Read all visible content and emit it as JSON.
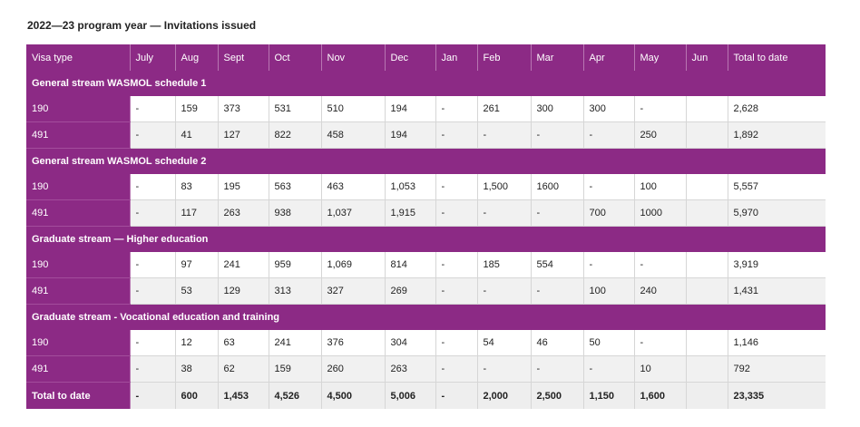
{
  "title": "2022—23 program year — Invitations issued",
  "columns": [
    "Visa type",
    "July",
    "Aug",
    "Sept",
    "Oct",
    "Nov",
    "Dec",
    "Jan",
    "Feb",
    "Mar",
    "Apr",
    "May",
    "Jun",
    "Total to date"
  ],
  "sections": [
    {
      "label": "General stream WASMOL schedule 1",
      "rows": [
        [
          "190",
          "-",
          "159",
          "373",
          "531",
          "510",
          "194",
          "-",
          "261",
          "300",
          "300",
          "-",
          "",
          "2,628"
        ],
        [
          "491",
          "-",
          "41",
          "127",
          "822",
          "458",
          "194",
          "-",
          "-",
          "-",
          "-",
          "250",
          "",
          "1,892"
        ]
      ]
    },
    {
      "label": "General stream WASMOL schedule 2",
      "rows": [
        [
          "190",
          "-",
          "83",
          "195",
          "563",
          "463",
          "1,053",
          "-",
          "1,500",
          "1600",
          "-",
          "100",
          "",
          "5,557"
        ],
        [
          "491",
          "-",
          "117",
          "263",
          "938",
          "1,037",
          "1,915",
          "-",
          "-",
          "-",
          "700",
          "1000",
          "",
          "5,970"
        ]
      ]
    },
    {
      "label": "Graduate stream — Higher education",
      "rows": [
        [
          "190",
          "-",
          "97",
          "241",
          "959",
          "1,069",
          "814",
          "-",
          "185",
          "554",
          "-",
          "-",
          "",
          "3,919"
        ],
        [
          "491",
          "-",
          "53",
          "129",
          "313",
          "327",
          "269",
          "-",
          "-",
          "-",
          "100",
          "240",
          "",
          "1,431"
        ]
      ]
    },
    {
      "label": "Graduate stream - Vocational education and training",
      "rows": [
        [
          "190",
          "-",
          "12",
          "63",
          "241",
          "376",
          "304",
          "-",
          "54",
          "46",
          "50",
          "-",
          "",
          "1,146"
        ],
        [
          "491",
          "-",
          "38",
          "62",
          "159",
          "260",
          "263",
          "-",
          "-",
          "-",
          "-",
          "10",
          "",
          "792"
        ]
      ]
    }
  ],
  "total": [
    "Total to date",
    "-",
    "600",
    "1,453",
    "4,526",
    "4,500",
    "5,006",
    "-",
    "2,000",
    "2,500",
    "1,150",
    "1,600",
    "",
    "23,335"
  ],
  "colors": {
    "accent": "#8c2a85",
    "row_alt": "#f1f1f1",
    "total_bg": "#eeeeee"
  }
}
